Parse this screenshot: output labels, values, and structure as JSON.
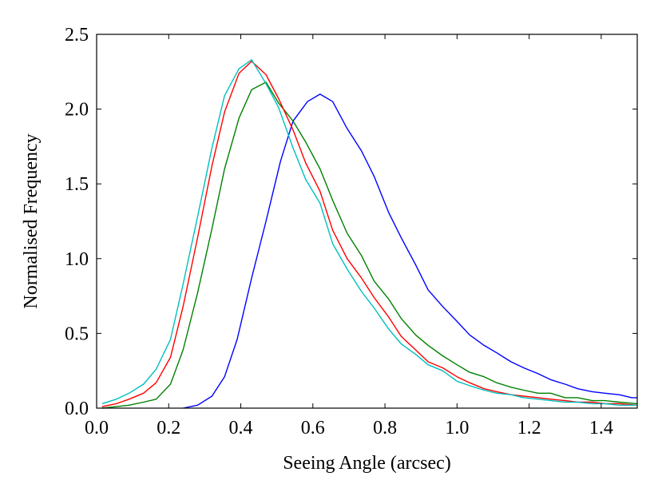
{
  "chart_data": {
    "type": "line",
    "title": "",
    "xlabel": "Seeing Angle (arcsec)",
    "ylabel": "Normalised Frequency",
    "xlim": [
      0.0,
      1.5
    ],
    "ylim": [
      0.0,
      2.5
    ],
    "xticks": [
      "0.0",
      "0.2",
      "0.4",
      "0.6",
      "0.8",
      "1.0",
      "1.2",
      "1.4"
    ],
    "yticks": [
      "0.0",
      "0.5",
      "1.0",
      "1.5",
      "2.0",
      "2.5"
    ],
    "grid": false,
    "legend": "none",
    "series": [
      {
        "color": "#0000ff",
        "x": [
          0.24,
          0.28,
          0.32,
          0.355,
          0.39,
          0.43,
          0.47,
          0.51,
          0.545,
          0.585,
          0.62,
          0.655,
          0.695,
          0.735,
          0.77,
          0.81,
          0.845,
          0.885,
          0.92,
          0.96,
          1.0,
          1.035,
          1.075,
          1.11,
          1.15,
          1.185,
          1.225,
          1.26,
          1.3,
          1.335,
          1.375,
          1.41,
          1.45,
          1.485,
          1.5
        ],
        "y": [
          0.0,
          0.02,
          0.08,
          0.21,
          0.46,
          0.87,
          1.25,
          1.65,
          1.92,
          2.05,
          2.1,
          2.05,
          1.87,
          1.72,
          1.55,
          1.31,
          1.14,
          0.96,
          0.79,
          0.68,
          0.58,
          0.49,
          0.42,
          0.37,
          0.31,
          0.27,
          0.23,
          0.19,
          0.16,
          0.13,
          0.11,
          0.1,
          0.09,
          0.07,
          0.07
        ]
      },
      {
        "color": "#008000",
        "x": [
          0.015,
          0.055,
          0.09,
          0.13,
          0.165,
          0.205,
          0.24,
          0.28,
          0.32,
          0.355,
          0.395,
          0.43,
          0.47,
          0.505,
          0.545,
          0.58,
          0.62,
          0.655,
          0.695,
          0.735,
          0.77,
          0.81,
          0.845,
          0.885,
          0.92,
          0.96,
          1.0,
          1.035,
          1.075,
          1.11,
          1.15,
          1.185,
          1.225,
          1.26,
          1.3,
          1.335,
          1.375,
          1.41,
          1.45,
          1.5
        ],
        "y": [
          0.0,
          0.01,
          0.02,
          0.04,
          0.06,
          0.16,
          0.39,
          0.77,
          1.2,
          1.6,
          1.94,
          2.13,
          2.18,
          2.04,
          1.92,
          1.78,
          1.6,
          1.39,
          1.17,
          1.02,
          0.85,
          0.73,
          0.6,
          0.49,
          0.42,
          0.35,
          0.29,
          0.24,
          0.21,
          0.17,
          0.14,
          0.12,
          0.1,
          0.1,
          0.07,
          0.07,
          0.05,
          0.05,
          0.04,
          0.03
        ]
      },
      {
        "color": "#ff0000",
        "x": [
          0.015,
          0.055,
          0.09,
          0.13,
          0.165,
          0.205,
          0.24,
          0.28,
          0.32,
          0.355,
          0.395,
          0.43,
          0.47,
          0.505,
          0.545,
          0.58,
          0.62,
          0.655,
          0.695,
          0.735,
          0.77,
          0.81,
          0.845,
          0.885,
          0.92,
          0.96,
          1.0,
          1.035,
          1.075,
          1.11,
          1.15,
          1.185,
          1.225,
          1.26,
          1.3,
          1.335,
          1.375,
          1.41,
          1.45,
          1.5
        ],
        "y": [
          0.01,
          0.03,
          0.06,
          0.1,
          0.17,
          0.34,
          0.68,
          1.14,
          1.62,
          1.98,
          2.24,
          2.32,
          2.23,
          2.07,
          1.86,
          1.64,
          1.45,
          1.19,
          1.0,
          0.87,
          0.74,
          0.61,
          0.48,
          0.39,
          0.31,
          0.27,
          0.21,
          0.17,
          0.13,
          0.11,
          0.09,
          0.08,
          0.07,
          0.06,
          0.05,
          0.04,
          0.04,
          0.03,
          0.03,
          0.02
        ]
      },
      {
        "color": "#00bfbf",
        "x": [
          0.015,
          0.055,
          0.09,
          0.13,
          0.165,
          0.205,
          0.24,
          0.28,
          0.32,
          0.355,
          0.395,
          0.43,
          0.47,
          0.505,
          0.545,
          0.58,
          0.62,
          0.655,
          0.695,
          0.735,
          0.77,
          0.81,
          0.845,
          0.885,
          0.92,
          0.96,
          1.0,
          1.035,
          1.075,
          1.11,
          1.15,
          1.185,
          1.225,
          1.26,
          1.3,
          1.335,
          1.375,
          1.41,
          1.45,
          1.5
        ],
        "y": [
          0.03,
          0.06,
          0.1,
          0.16,
          0.26,
          0.46,
          0.83,
          1.28,
          1.74,
          2.09,
          2.27,
          2.33,
          2.17,
          2.01,
          1.74,
          1.53,
          1.37,
          1.1,
          0.93,
          0.78,
          0.67,
          0.53,
          0.43,
          0.36,
          0.29,
          0.25,
          0.18,
          0.15,
          0.12,
          0.1,
          0.09,
          0.07,
          0.06,
          0.05,
          0.04,
          0.04,
          0.03,
          0.03,
          0.02,
          0.02
        ]
      }
    ]
  }
}
